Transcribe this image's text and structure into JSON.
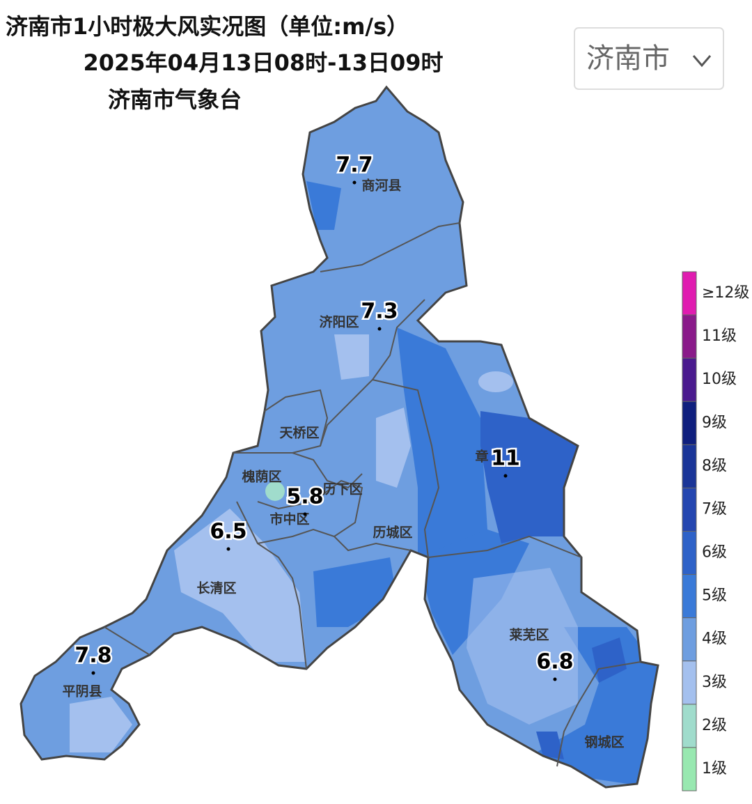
{
  "header": {
    "title": "济南市1小时极大风实况图（单位:m/s）",
    "time": "2025年04月13日08时-13日09时",
    "source": "济南市气象台"
  },
  "selector": {
    "label": "济南市"
  },
  "districts": [
    {
      "name": "商河县"
    },
    {
      "name": "济阳区"
    },
    {
      "name": "天桥区"
    },
    {
      "name": "槐荫区"
    },
    {
      "name": "历下区"
    },
    {
      "name": "市中区"
    },
    {
      "name": "历城区"
    },
    {
      "name": "长清区"
    },
    {
      "name": "平阴县"
    },
    {
      "name": "章"
    },
    {
      "name": "莱芜区"
    },
    {
      "name": "钢城区"
    }
  ],
  "stations": [
    {
      "value": 7.7
    },
    {
      "value": 7.3
    },
    {
      "value": 5.8
    },
    {
      "value": 6.5
    },
    {
      "value": 7.8
    },
    {
      "value": 11
    },
    {
      "value": 6.8
    }
  ],
  "legend": [
    {
      "label": "≥12级",
      "color": "#e01cb0"
    },
    {
      "label": "11级",
      "color": "#8a1a8a"
    },
    {
      "label": "10级",
      "color": "#4a1a8e"
    },
    {
      "label": "9级",
      "color": "#0f1f7e"
    },
    {
      "label": "8级",
      "color": "#1a3598"
    },
    {
      "label": "7级",
      "color": "#2446b0"
    },
    {
      "label": "6级",
      "color": "#2e62c8"
    },
    {
      "label": "5级",
      "color": "#3a7ad8"
    },
    {
      "label": "4级",
      "color": "#6e9ee0"
    },
    {
      "label": "3级",
      "color": "#a4c0ee"
    },
    {
      "label": "2级",
      "color": "#a0dccc"
    },
    {
      "label": "1级",
      "color": "#98e8b0"
    }
  ]
}
